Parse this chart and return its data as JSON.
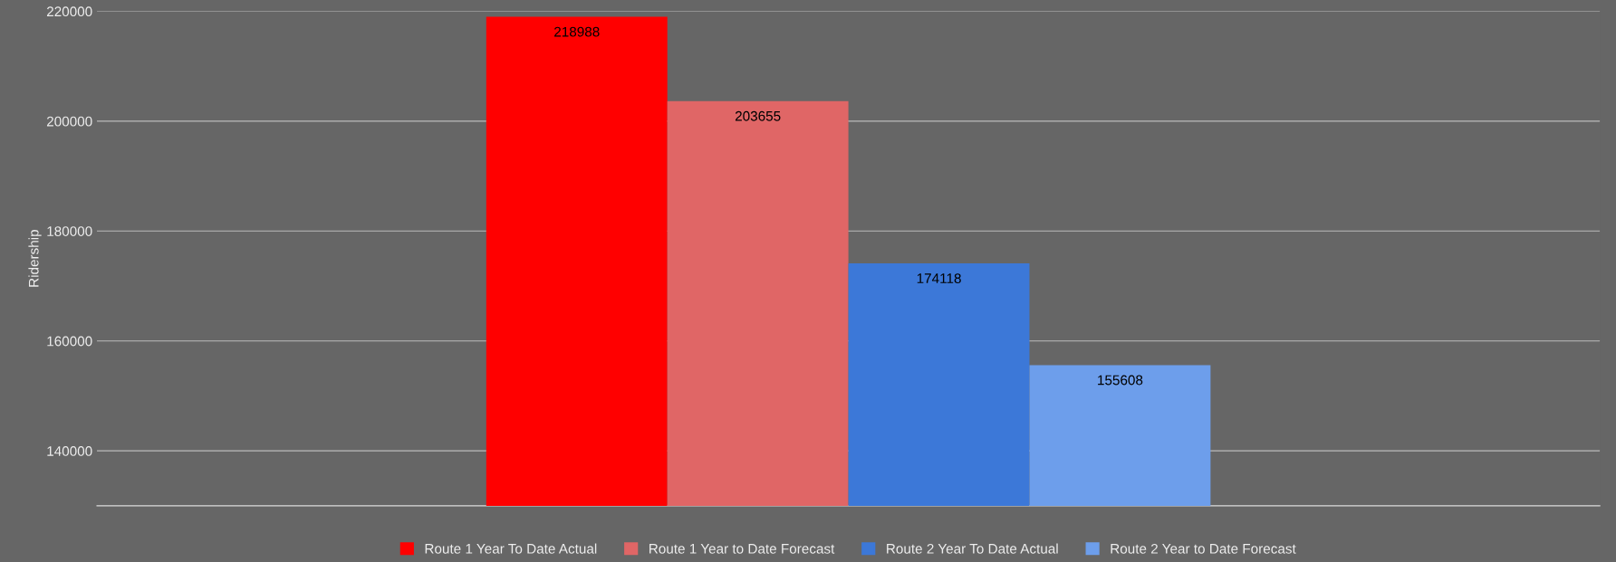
{
  "chart_data": {
    "type": "bar",
    "ylabel": "Ridership",
    "categories": [
      null
    ],
    "series": [
      {
        "name": "Route 1 Year To Date Actual",
        "color": "#ff0000",
        "values": [
          218988
        ]
      },
      {
        "name": "Route 1 Year to Date Forecast",
        "color": "#e06666",
        "values": [
          203655
        ]
      },
      {
        "name": "Route 2 Year To Date Actual",
        "color": "#3c78d8",
        "values": [
          174118
        ]
      },
      {
        "name": "Route 2 Year to Date Forecast",
        "color": "#6d9eeb",
        "values": [
          155608
        ]
      }
    ],
    "ylim": [
      130000,
      220000
    ],
    "yticks": [
      140000,
      160000,
      180000,
      200000,
      220000
    ],
    "grid": "y",
    "legend": "bottom",
    "data_labels": true
  }
}
